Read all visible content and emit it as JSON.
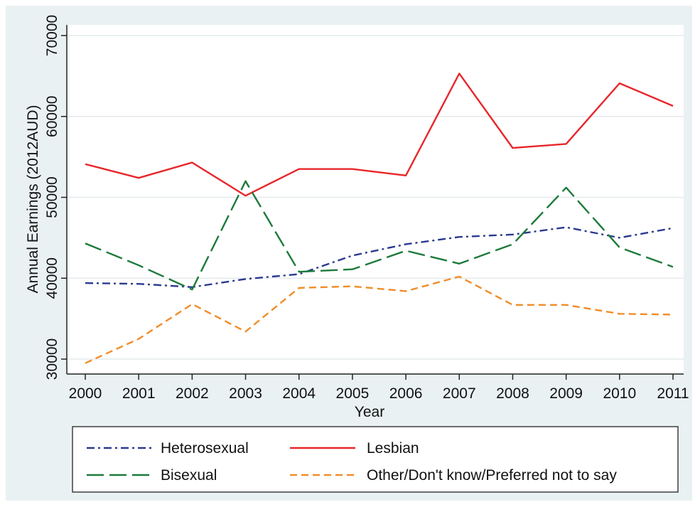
{
  "chart_data": {
    "type": "line",
    "title": "",
    "xlabel": "Year",
    "ylabel": "Annual Earnings (2012AUD)",
    "x": [
      2000,
      2001,
      2002,
      2003,
      2004,
      2005,
      2006,
      2007,
      2008,
      2009,
      2010,
      2011
    ],
    "xlim": [
      2000,
      2011
    ],
    "ylim": [
      30000,
      70000
    ],
    "yticks": [
      30000,
      40000,
      50000,
      60000,
      70000
    ],
    "grid": true,
    "legend_position": "bottom",
    "series": [
      {
        "name": "Heterosexual",
        "color": "#2a3a8f",
        "dash": "dash-dot",
        "values": [
          39400,
          39300,
          38900,
          39900,
          40500,
          42800,
          44200,
          45100,
          45400,
          46300,
          45000,
          46200
        ]
      },
      {
        "name": "Lesbian",
        "color": "#e8262a",
        "dash": "solid",
        "values": [
          54100,
          52400,
          54300,
          50200,
          53500,
          53500,
          52700,
          65300,
          56100,
          56600,
          64100,
          61300
        ]
      },
      {
        "name": "Bisexual",
        "color": "#1d7a3b",
        "dash": "long-dash",
        "values": [
          44300,
          41600,
          38600,
          52000,
          40800,
          41100,
          43400,
          41800,
          44200,
          51200,
          43800,
          41400
        ]
      },
      {
        "name": "Other/Don't know/Preferred not to say",
        "color": "#f28c28",
        "dash": "short-dash",
        "values": [
          29500,
          32500,
          36800,
          33400,
          38800,
          39000,
          38400,
          40200,
          36700,
          36700,
          35600,
          35500
        ]
      }
    ]
  }
}
